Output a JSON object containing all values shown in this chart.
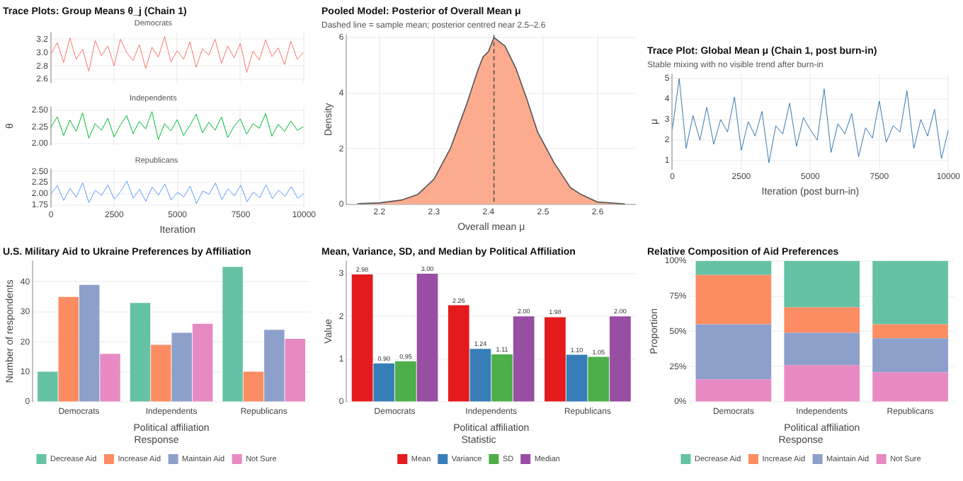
{
  "chart_data": [
    {
      "type": "line",
      "title": "Trace Plots: Group Means θ_j (Chain 1)",
      "subtitle": "Democrats",
      "x": [
        0,
        250,
        500,
        750,
        1000,
        1250,
        1500,
        1750,
        2000,
        2250,
        2500,
        2750,
        3000,
        3250,
        3500,
        3750,
        4000,
        4250,
        4500,
        4750,
        5000,
        5250,
        5500,
        5750,
        6000,
        6250,
        6500,
        6750,
        7000,
        7250,
        7500,
        7750,
        8000,
        8250,
        8500,
        8750,
        9000,
        9250,
        9500,
        9750,
        10000
      ],
      "series": [
        {
          "color": "#f8766d",
          "values": [
            2.98,
            3.15,
            2.85,
            3.22,
            2.9,
            3.05,
            2.72,
            3.18,
            2.95,
            3.1,
            2.8,
            3.2,
            3.0,
            2.88,
            3.12,
            2.76,
            3.08,
            2.93,
            3.24,
            2.86,
            3.03,
            2.9,
            3.16,
            2.78,
            3.06,
            2.96,
            3.2,
            2.84,
            3.1,
            2.92,
            3.14,
            2.7,
            3.02,
            2.89,
            3.19,
            2.94,
            3.07,
            2.82,
            3.17,
            2.9,
            3.0
          ]
        }
      ],
      "xlim": [
        0,
        10000
      ],
      "xticks": [
        0,
        2500,
        5000,
        7500,
        10000
      ],
      "ylim": [
        2.55,
        3.3
      ],
      "yticks": [
        2.6,
        2.8,
        {
          "value": 3,
          "label": "3.0"
        },
        3.2
      ],
      "grid": true,
      "marker": "none",
      "legend": false,
      "tick_labels": "y"
    },
    {
      "type": "line",
      "subtitle": "Independents",
      "ylabel": "θ",
      "x": [
        0,
        250,
        500,
        750,
        1000,
        1250,
        1500,
        1750,
        2000,
        2250,
        2500,
        2750,
        3000,
        3250,
        3500,
        3750,
        4000,
        4250,
        4500,
        4750,
        5000,
        5250,
        5500,
        5750,
        6000,
        6250,
        6500,
        6750,
        7000,
        7250,
        7500,
        7750,
        8000,
        8250,
        8500,
        8750,
        9000,
        9250,
        9500,
        9750,
        10000
      ],
      "series": [
        {
          "color": "#00ba38",
          "values": [
            2.25,
            2.4,
            2.12,
            2.35,
            2.18,
            2.46,
            2.08,
            2.3,
            2.2,
            2.38,
            2.1,
            2.28,
            2.42,
            2.15,
            2.33,
            2.22,
            2.48,
            2.06,
            2.3,
            2.19,
            2.36,
            2.12,
            2.27,
            2.44,
            2.16,
            2.32,
            2.2,
            2.4,
            2.09,
            2.26,
            2.37,
            2.14,
            2.3,
            2.23,
            2.45,
            2.11,
            2.29,
            2.18,
            2.34,
            2.2,
            2.25
          ]
        }
      ],
      "xlim": [
        0,
        10000
      ],
      "xticks": [
        0,
        2500,
        5000,
        7500,
        10000
      ],
      "ylim": [
        1.98,
        2.55
      ],
      "yticks": [
        {
          "value": 2,
          "label": "2.00"
        },
        {
          "value": 2.25,
          "label": "2.25"
        },
        {
          "value": 2.5,
          "label": "2.50"
        }
      ],
      "grid": true,
      "marker": "none",
      "legend": false,
      "tick_labels": "y"
    },
    {
      "type": "line",
      "subtitle": "Republicans",
      "xlabel": "Iteration",
      "x": [
        0,
        250,
        500,
        750,
        1000,
        1250,
        1500,
        1750,
        2000,
        2250,
        2500,
        2750,
        3000,
        3250,
        3500,
        3750,
        4000,
        4250,
        4500,
        4750,
        5000,
        5250,
        5500,
        5750,
        6000,
        6250,
        6500,
        6750,
        7000,
        7250,
        7500,
        7750,
        8000,
        8250,
        8500,
        8750,
        9000,
        9250,
        9500,
        9750,
        10000
      ],
      "series": [
        {
          "color": "#619cff",
          "values": [
            2.0,
            2.18,
            1.85,
            2.12,
            1.92,
            2.25,
            1.8,
            2.08,
            1.96,
            2.2,
            1.88,
            2.05,
            2.28,
            1.9,
            2.1,
            1.83,
            2.15,
            1.97,
            2.22,
            1.86,
            2.03,
            1.93,
            2.17,
            1.78,
            2.06,
            1.99,
            2.24,
            1.87,
            2.11,
            1.95,
            2.19,
            1.82,
            2.04,
            1.91,
            2.2,
            1.89,
            2.08,
            1.94,
            2.16,
            1.9,
            2.0
          ]
        }
      ],
      "xlim": [
        0,
        10000
      ],
      "xticks": [
        0,
        2500,
        5000,
        7500,
        10000
      ],
      "ylim": [
        1.7,
        2.55
      ],
      "yticks": [
        {
          "value": 1.75,
          "label": "1.75"
        },
        {
          "value": 2,
          "label": "2.00"
        },
        {
          "value": 2.25,
          "label": "2.25"
        },
        {
          "value": 2.5,
          "label": "2.50"
        }
      ],
      "grid": true,
      "marker": "none",
      "legend": false
    },
    {
      "type": "area",
      "title": "Pooled Model: Posterior of Overall Mean μ",
      "subtitle": "Dashed line = sample mean; posterior centred near 2.5–2.6",
      "xlabel": "Overall mean μ",
      "ylabel": "Density",
      "x": [
        2.16,
        2.2,
        2.24,
        2.27,
        2.3,
        2.33,
        2.36,
        2.38,
        2.39,
        2.4,
        2.41,
        2.43,
        2.45,
        2.47,
        2.49,
        2.52,
        2.55,
        2.57,
        2.6,
        2.65
      ],
      "series": [
        {
          "color": "#fcab8e",
          "values": [
            0.02,
            0.05,
            0.15,
            0.35,
            0.9,
            2.0,
            3.6,
            4.8,
            5.3,
            5.5,
            6.0,
            5.7,
            4.9,
            3.8,
            2.6,
            1.5,
            0.6,
            0.35,
            0.08,
            0.01
          ]
        }
      ],
      "xlim": [
        2.14,
        2.67
      ],
      "xticks": [
        2.2,
        2.3,
        2.4,
        2.5,
        2.6
      ],
      "ylim": [
        0,
        6.1
      ],
      "yticks": [
        0,
        2,
        4,
        6
      ],
      "grid": true,
      "marker": "none",
      "legend": false,
      "ref_lines": [
        {
          "axis": "x",
          "value": 2.41,
          "line_style": "dashed",
          "color": "#555555"
        }
      ]
    },
    {
      "type": "line",
      "title": "Trace Plot: Global Mean μ (Chain 1, post burn-in)",
      "subtitle": "Stable mixing with no visible trend after burn-in",
      "xlabel": "Iteration (post burn-in)",
      "ylabel": "μ",
      "x": [
        0,
        250,
        500,
        750,
        1000,
        1250,
        1500,
        1750,
        2000,
        2250,
        2500,
        2750,
        3000,
        3250,
        3500,
        3750,
        4000,
        4250,
        4500,
        4750,
        5000,
        5250,
        5500,
        5750,
        6000,
        6250,
        6500,
        6750,
        7000,
        7250,
        7500,
        7750,
        8000,
        8250,
        8500,
        8750,
        9000,
        9250,
        9500,
        9750,
        10000
      ],
      "series": [
        {
          "color": "#3a78b0",
          "values": [
            2.5,
            5.0,
            1.6,
            3.2,
            2.0,
            3.6,
            1.8,
            3.0,
            2.4,
            4.1,
            1.5,
            2.9,
            2.2,
            3.4,
            0.9,
            2.7,
            2.3,
            3.8,
            1.7,
            3.1,
            2.5,
            2.0,
            4.5,
            1.4,
            2.8,
            2.3,
            3.3,
            1.2,
            2.6,
            2.1,
            3.9,
            1.9,
            2.7,
            2.4,
            4.4,
            1.6,
            3.0,
            2.2,
            3.5,
            1.1,
            2.5
          ]
        }
      ],
      "xlim": [
        0,
        10000
      ],
      "xticks": [
        0,
        2500,
        5000,
        7500,
        10000
      ],
      "ylim": [
        0.6,
        5.2
      ],
      "yticks": [
        1,
        2,
        3,
        4,
        5
      ],
      "grid": true,
      "marker": "none",
      "legend": false
    },
    {
      "type": "bar",
      "title": "U.S. Military Aid to Ukraine Preferences by Affiliation",
      "xlabel": "Political affiliation",
      "ylabel": "Number of respondents",
      "legend_title": "Response",
      "categories": [
        "Democrats",
        "Independents",
        "Republicans"
      ],
      "series": [
        {
          "name": "Decrease Aid",
          "color": "#66c2a5",
          "values": [
            10,
            33,
            45
          ]
        },
        {
          "name": "Increase Aid",
          "color": "#fc8d62",
          "values": [
            35,
            19,
            10
          ]
        },
        {
          "name": "Maintain Aid",
          "color": "#8da0cb",
          "values": [
            39,
            23,
            24
          ]
        },
        {
          "name": "Not Sure",
          "color": "#e78ac3",
          "values": [
            16,
            26,
            21
          ]
        }
      ],
      "ylim": [
        0,
        47
      ],
      "yticks": [
        0,
        10,
        20,
        30,
        40
      ],
      "grid": true,
      "legend": "bottom"
    },
    {
      "type": "bar",
      "title": "Mean, Variance, SD, and Median by Political Affiliation",
      "xlabel": "Political affiliation",
      "ylabel": "Value",
      "legend_title": "Statistic",
      "categories": [
        "Democrats",
        "Independents",
        "Republicans"
      ],
      "series": [
        {
          "name": "Mean",
          "color": "#e41a1c",
          "values": [
            2.98,
            2.26,
            1.98
          ],
          "value_labels": [
            "2.98",
            "2.26",
            "1.98"
          ]
        },
        {
          "name": "Variance",
          "color": "#377eb8",
          "values": [
            0.9,
            1.24,
            1.1
          ],
          "value_labels": [
            "0.90",
            "1.24",
            "1.10"
          ]
        },
        {
          "name": "SD",
          "color": "#4daf4a",
          "values": [
            0.95,
            1.11,
            1.05
          ],
          "value_labels": [
            "0.95",
            "1.11",
            "1.05"
          ]
        },
        {
          "name": "Median",
          "color": "#984ea3",
          "values": [
            3,
            2,
            2
          ],
          "value_labels": [
            "3.00",
            "2.00",
            "2.00"
          ]
        }
      ],
      "ylim": [
        0,
        3.3
      ],
      "yticks": [
        0,
        1,
        2,
        3
      ],
      "grid": true,
      "legend": "bottom"
    },
    {
      "type": "bar",
      "stacked": true,
      "title": "Relative Composition of Aid Preferences",
      "xlabel": "Political affiliation",
      "ylabel": "Proportion",
      "legend_title": "Response",
      "categories": [
        "Democrats",
        "Independents",
        "Republicans"
      ],
      "series": [
        {
          "name": "Not Sure",
          "color": "#e78ac3",
          "values": [
            16,
            26,
            21
          ]
        },
        {
          "name": "Maintain Aid",
          "color": "#8da0cb",
          "values": [
            39,
            23,
            24
          ]
        },
        {
          "name": "Increase Aid",
          "color": "#fc8d62",
          "values": [
            35,
            18,
            10
          ]
        },
        {
          "name": "Decrease Aid",
          "color": "#66c2a5",
          "values": [
            10,
            33,
            45
          ]
        }
      ],
      "ylim": [
        0,
        100
      ],
      "yticks": [
        {
          "value": 0,
          "label": "0%"
        },
        {
          "value": 25,
          "label": "25%"
        },
        {
          "value": 50,
          "label": "50%"
        },
        {
          "value": 75,
          "label": "75%"
        },
        {
          "value": 100,
          "label": "100%"
        }
      ],
      "grid": true,
      "legend": "bottom"
    }
  ]
}
